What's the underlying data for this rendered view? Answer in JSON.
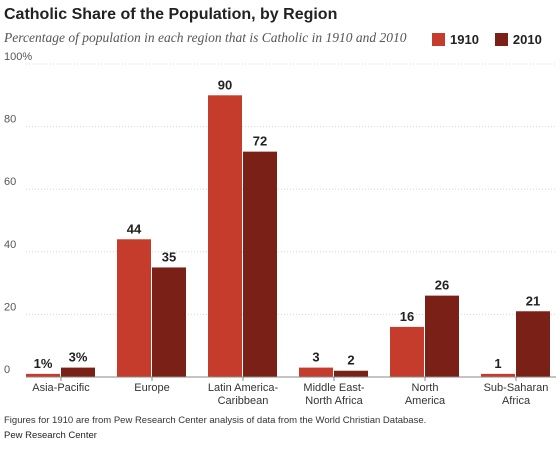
{
  "title": "Catholic Share of the Population, by Region",
  "subtitle": "Percentage of population in each region that is Catholic in 1910 and 2010",
  "footnote": "Figures for 1910 are from Pew Research Center analysis of data from the World Christian Database.",
  "source": "Pew Research Center",
  "colors": {
    "s1910": "#c63c2c",
    "s2010": "#7b2016",
    "grid": "#d6d6d6",
    "axis": "#888888"
  },
  "chart_data": {
    "type": "bar",
    "categories": [
      [
        "Asia-Pacific"
      ],
      [
        "Europe"
      ],
      [
        "Latin America-",
        "Caribbean"
      ],
      [
        "Middle East-",
        "North Africa"
      ],
      [
        "North",
        "America"
      ],
      [
        "Sub-Saharan",
        "Africa"
      ]
    ],
    "series": [
      {
        "name": "1910",
        "values": [
          1,
          44,
          90,
          3,
          16,
          1
        ],
        "labels": [
          "1%",
          "44",
          "90",
          "3",
          "16",
          "1"
        ]
      },
      {
        "name": "2010",
        "values": [
          3,
          35,
          72,
          2,
          26,
          21
        ],
        "labels": [
          "3%",
          "35",
          "72",
          "2",
          "26",
          "21"
        ]
      }
    ],
    "ylim": [
      0,
      100
    ],
    "yticks": [
      0,
      20,
      40,
      60,
      80,
      100
    ],
    "ytick_labels": [
      "0",
      "20",
      "40",
      "60",
      "80",
      "100%"
    ],
    "grid": true,
    "legend": "top-right"
  }
}
